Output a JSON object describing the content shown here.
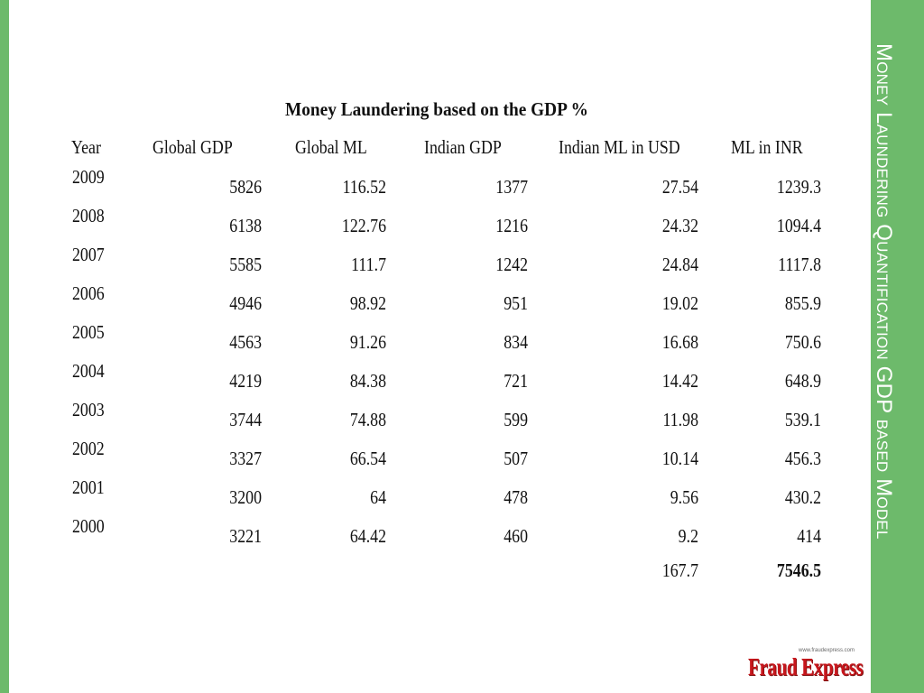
{
  "colors": {
    "panel": "#6dba6b",
    "text": "#111111",
    "logo_red": "#c8171d"
  },
  "side_title": "Money Laundering Quantification GDP based Model",
  "table": {
    "title": "Money Laundering based on the GDP %",
    "headers": [
      "Year",
      "Global GDP",
      "Global ML",
      "Indian GDP",
      "Indian ML in USD",
      "ML in INR"
    ],
    "rows": [
      [
        "2009",
        "5826",
        "116.52",
        "1377",
        "27.54",
        "1239.3"
      ],
      [
        "2008",
        "6138",
        "122.76",
        "1216",
        "24.32",
        "1094.4"
      ],
      [
        "2007",
        "5585",
        "111.7",
        "1242",
        "24.84",
        "1117.8"
      ],
      [
        "2006",
        "4946",
        "98.92",
        "951",
        "19.02",
        "855.9"
      ],
      [
        "2005",
        "4563",
        "91.26",
        "834",
        "16.68",
        "750.6"
      ],
      [
        "2004",
        "4219",
        "84.38",
        "721",
        "14.42",
        "648.9"
      ],
      [
        "2003",
        "3744",
        "74.88",
        "599",
        "11.98",
        "539.1"
      ],
      [
        "2002",
        "3327",
        "66.54",
        "507",
        "10.14",
        "456.3"
      ],
      [
        "2001",
        "3200",
        "64",
        "478",
        "9.56",
        "430.2"
      ],
      [
        "2000",
        "3221",
        "64.42",
        "460",
        "9.2",
        "414"
      ]
    ],
    "totals": {
      "indian_ml_usd": "167.7",
      "ml_inr": "7546.5"
    }
  },
  "logo": {
    "text": "Fraud Express",
    "url_text": "www.fraudexpress.com"
  }
}
